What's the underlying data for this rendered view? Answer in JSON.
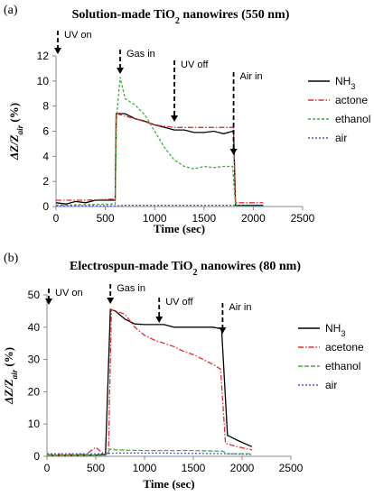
{
  "chart_data": [
    {
      "type": "line",
      "panel_label": "(a)",
      "title_parts": [
        "Solution-made TiO",
        "2",
        " nanowires (550 nm)"
      ],
      "xlabel": "Time (sec)",
      "ylabel_parts": [
        "ΔZ/Z",
        "air",
        " (%)"
      ],
      "xlim": [
        0,
        2500
      ],
      "ylim": [
        0,
        12
      ],
      "xticks": [
        "0",
        "500",
        "1000",
        "1500",
        "2000",
        "2500"
      ],
      "yticks": [
        "0",
        "2",
        "4",
        "6",
        "8",
        "10",
        "12"
      ],
      "annotations": [
        {
          "text": "UV on",
          "x": 10
        },
        {
          "text": "Gas in",
          "x": 650
        },
        {
          "text": "UV off",
          "x": 1200
        },
        {
          "text": "Air in",
          "x": 1800
        }
      ],
      "legend": {
        "labels": [
          [
            "NH",
            "3"
          ],
          [
            "actone",
            ""
          ],
          [
            "ethanol",
            ""
          ],
          [
            "air",
            ""
          ]
        ],
        "placement": "right"
      },
      "series": [
        {
          "name": "NH3",
          "color": "#000000",
          "dash": "none",
          "points": [
            [
              0,
              0.3
            ],
            [
              100,
              0.2
            ],
            [
              200,
              0.4
            ],
            [
              300,
              0.3
            ],
            [
              400,
              0.5
            ],
            [
              500,
              0.5
            ],
            [
              600,
              0.5
            ],
            [
              610,
              7.4
            ],
            [
              700,
              7.4
            ],
            [
              800,
              7.0
            ],
            [
              900,
              6.8
            ],
            [
              1000,
              6.5
            ],
            [
              1100,
              6.3
            ],
            [
              1200,
              6.1
            ],
            [
              1300,
              6.1
            ],
            [
              1400,
              5.9
            ],
            [
              1500,
              5.9
            ],
            [
              1600,
              6.0
            ],
            [
              1700,
              5.8
            ],
            [
              1790,
              6.0
            ],
            [
              1800,
              5.9
            ],
            [
              1820,
              0.1
            ],
            [
              2100,
              0.1
            ]
          ]
        },
        {
          "name": "actone",
          "color": "#e03030",
          "dash": "6,2,1.5,2",
          "points": [
            [
              0,
              0.5
            ],
            [
              300,
              0.5
            ],
            [
              600,
              0.6
            ],
            [
              610,
              7.4
            ],
            [
              800,
              7.0
            ],
            [
              1000,
              6.5
            ],
            [
              1200,
              6.3
            ],
            [
              1400,
              6.3
            ],
            [
              1600,
              6.3
            ],
            [
              1800,
              6.3
            ],
            [
              1820,
              0.3
            ],
            [
              2100,
              0.3
            ]
          ]
        },
        {
          "name": "ethanol",
          "color": "#44aa44",
          "dash": "3,2",
          "points": [
            [
              0,
              0.1
            ],
            [
              300,
              0.15
            ],
            [
              600,
              0.2
            ],
            [
              615,
              7.3
            ],
            [
              650,
              10.3
            ],
            [
              700,
              8.6
            ],
            [
              800,
              8.1
            ],
            [
              900,
              7.3
            ],
            [
              1000,
              6.0
            ],
            [
              1100,
              4.7
            ],
            [
              1200,
              3.7
            ],
            [
              1300,
              3.2
            ],
            [
              1400,
              3.0
            ],
            [
              1500,
              3.2
            ],
            [
              1600,
              3.1
            ],
            [
              1700,
              3.2
            ],
            [
              1790,
              3.2
            ],
            [
              1820,
              0.05
            ],
            [
              2100,
              0.05
            ]
          ]
        },
        {
          "name": "air",
          "color": "#5555cc",
          "dash": "2,2",
          "points": [
            [
              0,
              0.05
            ],
            [
              600,
              0.05
            ],
            [
              700,
              0.1
            ],
            [
              1800,
              0.1
            ],
            [
              2100,
              0.05
            ]
          ]
        }
      ]
    },
    {
      "type": "line",
      "panel_label": "(b)",
      "title_parts": [
        "Electrospun-made TiO",
        "2",
        " nanowires (80 nm)"
      ],
      "xlabel": "Time (sec)",
      "ylabel_parts": [
        "ΔZ/Z",
        "air",
        " (%)"
      ],
      "xlim": [
        0,
        2500
      ],
      "ylim": [
        0,
        50
      ],
      "xticks": [
        "0",
        "500",
        "1000",
        "1500",
        "2000",
        "2500"
      ],
      "yticks": [
        "0",
        "10",
        "20",
        "30",
        "40",
        "50"
      ],
      "annotations": [
        {
          "text": "UV on",
          "x": 10
        },
        {
          "text": "Gas in",
          "x": 650
        },
        {
          "text": "UV off",
          "x": 1150
        },
        {
          "text": "Air in",
          "x": 1800
        }
      ],
      "legend": {
        "labels": [
          [
            "NH",
            "3"
          ],
          [
            "acetone",
            ""
          ],
          [
            "ethanol",
            ""
          ],
          [
            "air",
            ""
          ]
        ],
        "placement": "right"
      },
      "series": [
        {
          "name": "NH3",
          "color": "#000000",
          "dash": "none",
          "points": [
            [
              0,
              0.3
            ],
            [
              300,
              0.3
            ],
            [
              500,
              0.4
            ],
            [
              600,
              0.6
            ],
            [
              650,
              45.5
            ],
            [
              700,
              45.0
            ],
            [
              800,
              42.5
            ],
            [
              900,
              41.0
            ],
            [
              1000,
              40.8
            ],
            [
              1200,
              40.8
            ],
            [
              1300,
              40.0
            ],
            [
              1500,
              40.0
            ],
            [
              1700,
              40.0
            ],
            [
              1790,
              39.5
            ],
            [
              1850,
              6.5
            ],
            [
              1950,
              5.0
            ],
            [
              2100,
              3.0
            ]
          ]
        },
        {
          "name": "acetone",
          "color": "#e03030",
          "dash": "6,2,1.5,2",
          "points": [
            [
              0,
              0.5
            ],
            [
              400,
              0.6
            ],
            [
              500,
              2.8
            ],
            [
              580,
              0.8
            ],
            [
              630,
              1.0
            ],
            [
              660,
              45.5
            ],
            [
              700,
              45.0
            ],
            [
              800,
              44.0
            ],
            [
              900,
              40.0
            ],
            [
              1000,
              37.5
            ],
            [
              1100,
              36.0
            ],
            [
              1200,
              35.0
            ],
            [
              1300,
              34.0
            ],
            [
              1400,
              32.5
            ],
            [
              1500,
              31.5
            ],
            [
              1600,
              30.0
            ],
            [
              1700,
              28.5
            ],
            [
              1780,
              27.0
            ],
            [
              1830,
              4.0
            ],
            [
              1950,
              3.0
            ],
            [
              2100,
              2.0
            ]
          ]
        },
        {
          "name": "ethanol",
          "color": "#44aa44",
          "dash": "5,2",
          "points": [
            [
              0,
              0.3
            ],
            [
              600,
              0.3
            ],
            [
              650,
              2.3
            ],
            [
              700,
              2.0
            ],
            [
              1000,
              1.8
            ],
            [
              1500,
              1.8
            ],
            [
              1800,
              1.6
            ],
            [
              1850,
              0.8
            ],
            [
              2100,
              0.8
            ]
          ]
        },
        {
          "name": "air",
          "color": "#5555cc",
          "dash": "2,2",
          "points": [
            [
              0,
              0.8
            ],
            [
              600,
              0.8
            ],
            [
              700,
              1.0
            ],
            [
              1200,
              1.0
            ],
            [
              1800,
              0.8
            ],
            [
              2100,
              0.6
            ]
          ]
        }
      ]
    }
  ]
}
